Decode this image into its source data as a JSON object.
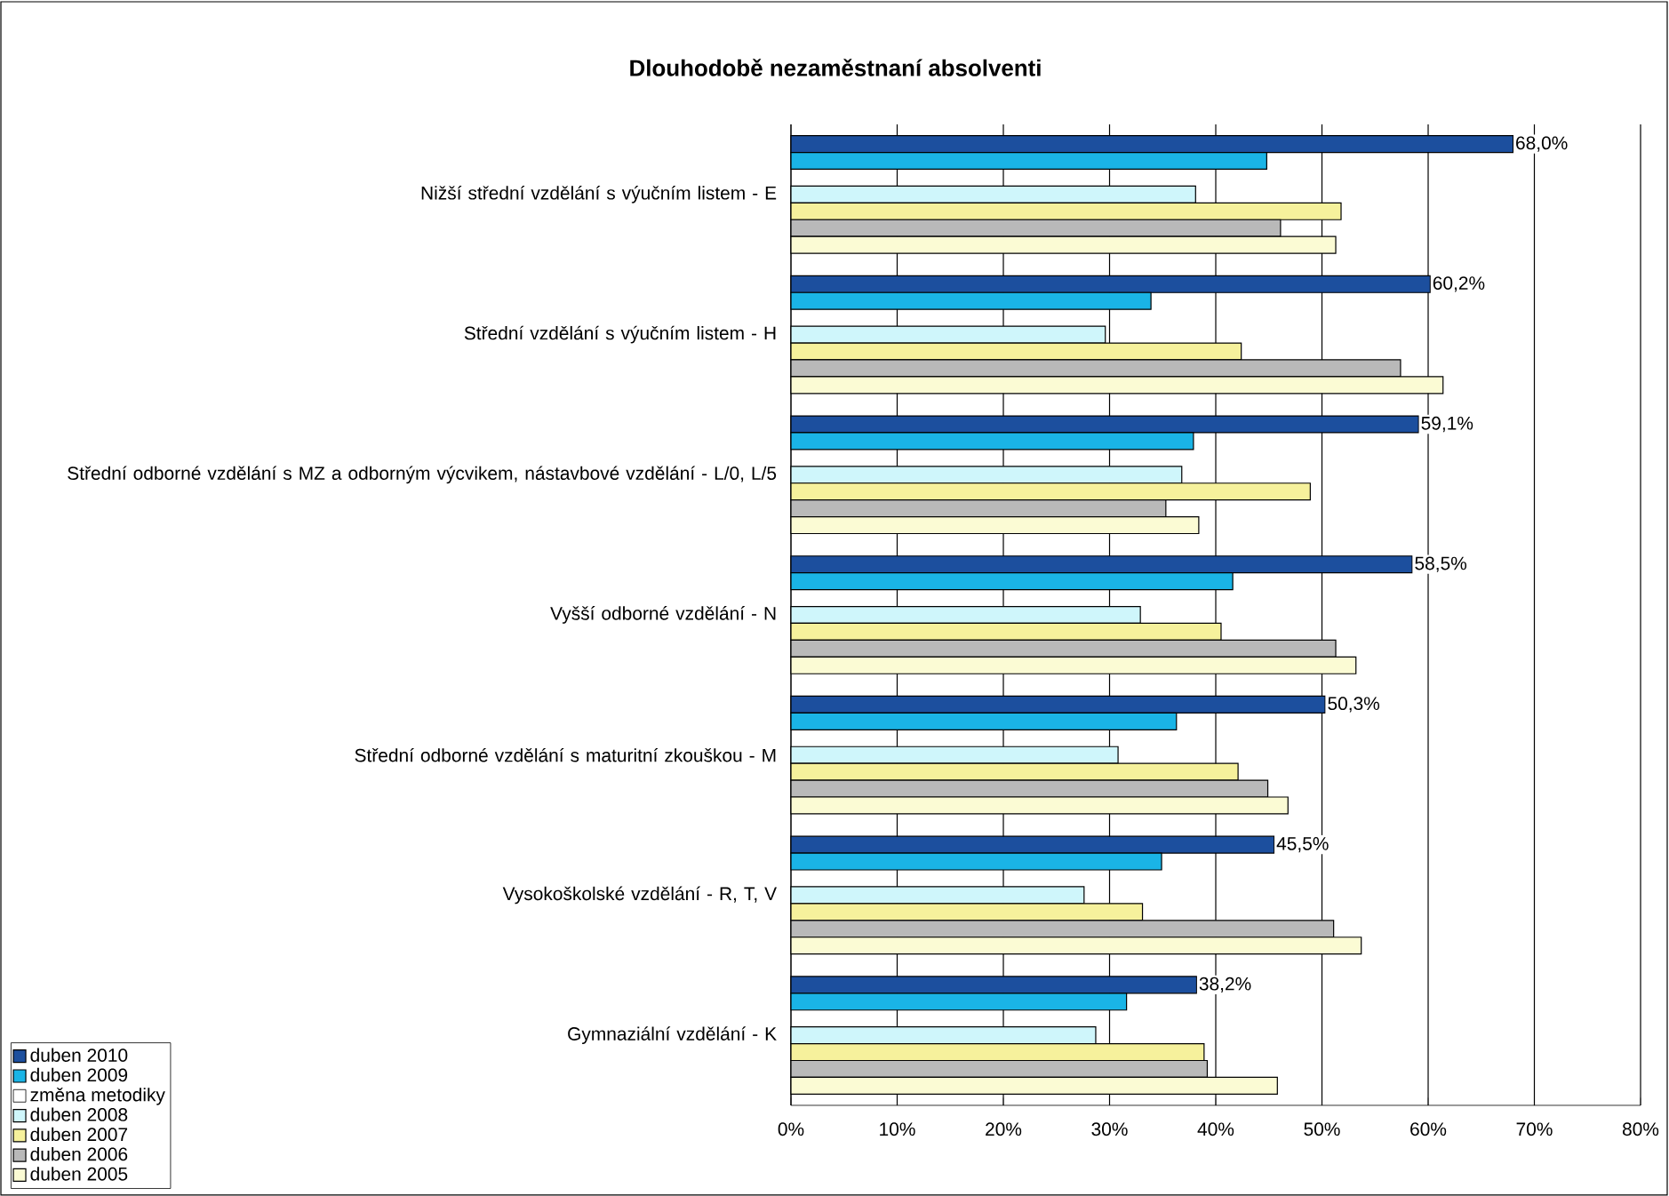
{
  "chart_data": {
    "type": "bar",
    "orientation": "horizontal",
    "title": "Dlouhodobě nezaměstnaní absolventi",
    "categories": [
      "Nižší střední vzdělání s výučním listem - E",
      "Střední vzdělání s výučním listem - H",
      "Střední odborné vzdělání s MZ a odborným výcvikem, nástavbové vzdělání - L/0, L/5",
      "Vyšší odborné vzdělání - N",
      "Střední odborné vzdělání s maturitní zkouškou - M",
      "Vysokoškolské vzdělání - R, T, V",
      "Gymnaziální vzdělání - K"
    ],
    "series": [
      {
        "name": "duben 2010",
        "color": "#1c4f9e",
        "values": [
          68.0,
          60.2,
          59.1,
          58.5,
          50.3,
          45.5,
          38.2
        ],
        "value_labels": [
          "68,0%",
          "60,2%",
          "59,1%",
          "58,5%",
          "50,3%",
          "45,5%",
          "38,2%"
        ]
      },
      {
        "name": "duben 2009",
        "color": "#1ab4e6",
        "values": [
          44.8,
          33.9,
          37.9,
          41.6,
          36.3,
          34.9,
          31.6
        ]
      },
      {
        "name": "změna metodiky",
        "color": "#ffffff",
        "values": [
          null,
          null,
          null,
          null,
          null,
          null,
          null
        ]
      },
      {
        "name": "duben 2008",
        "color": "#cff6fb",
        "values": [
          38.1,
          29.6,
          36.8,
          32.9,
          30.8,
          27.6,
          28.7
        ]
      },
      {
        "name": "duben 2007",
        "color": "#f6f19c",
        "values": [
          51.8,
          42.4,
          48.9,
          40.5,
          42.1,
          33.1,
          38.9
        ]
      },
      {
        "name": "duben 2006",
        "color": "#b9b9b9",
        "values": [
          46.1,
          57.4,
          35.3,
          51.3,
          44.9,
          51.1,
          39.2
        ]
      },
      {
        "name": "duben 2005",
        "color": "#fbfbd4",
        "values": [
          51.3,
          61.4,
          38.4,
          53.2,
          46.8,
          53.7,
          45.8
        ]
      }
    ],
    "xlim": [
      0,
      80
    ],
    "xticks": [
      {
        "value": 0,
        "label": "0%"
      },
      {
        "value": 10,
        "label": "10%"
      },
      {
        "value": 20,
        "label": "20%"
      },
      {
        "value": 30,
        "label": "30%"
      },
      {
        "value": 40,
        "label": "40%"
      },
      {
        "value": 50,
        "label": "50%"
      },
      {
        "value": 60,
        "label": "60%"
      },
      {
        "value": 70,
        "label": "70%"
      },
      {
        "value": 80,
        "label": "80%"
      }
    ],
    "grid": "x",
    "legend": "bottom left"
  }
}
